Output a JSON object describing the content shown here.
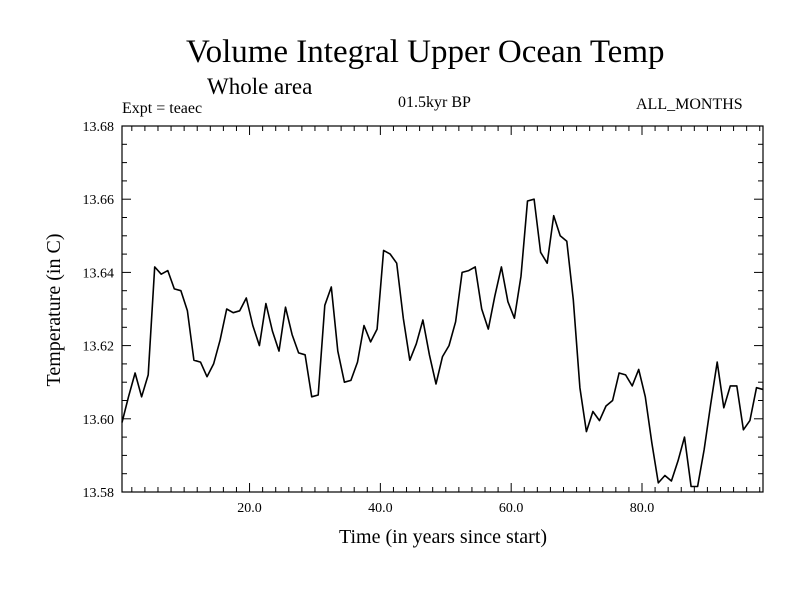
{
  "chart_data": {
    "type": "line",
    "title": "Volume Integral Upper Ocean Temp",
    "subtitle": "Whole area",
    "experiment_label": "Expt = teaec",
    "period_label": "01.5kyr BP",
    "months_label": "ALL_MONTHS",
    "xlabel": "Time (in years since start)",
    "ylabel": "Temperature (in C)",
    "xlim": [
      0.5,
      98.5
    ],
    "ylim": [
      13.58,
      13.68
    ],
    "x_ticks": [
      20,
      40,
      60,
      80
    ],
    "x_tick_labels": [
      "20.0",
      "40.0",
      "60.0",
      "80.0"
    ],
    "y_ticks": [
      13.58,
      13.6,
      13.62,
      13.64,
      13.66,
      13.68
    ],
    "y_tick_labels": [
      "13.58",
      "13.60",
      "13.62",
      "13.64",
      "13.66",
      "13.68"
    ],
    "grid": false,
    "series": [
      {
        "name": "Temperature",
        "x": [
          0.5,
          1.5,
          2.5,
          3.5,
          4.5,
          5.5,
          6.5,
          7.5,
          8.5,
          9.5,
          10.5,
          11.5,
          12.5,
          13.5,
          14.5,
          15.5,
          16.5,
          17.5,
          18.5,
          19.5,
          20.5,
          21.5,
          22.5,
          23.5,
          24.5,
          25.5,
          26.5,
          27.5,
          28.5,
          29.5,
          30.5,
          31.5,
          32.5,
          33.5,
          34.5,
          35.5,
          36.5,
          37.5,
          38.5,
          39.5,
          40.5,
          41.5,
          42.5,
          43.5,
          44.5,
          45.5,
          46.5,
          47.5,
          48.5,
          49.5,
          50.5,
          51.5,
          52.5,
          53.5,
          54.5,
          55.5,
          56.5,
          57.5,
          58.5,
          59.5,
          60.5,
          61.5,
          62.5,
          63.5,
          64.5,
          65.5,
          66.5,
          67.5,
          68.5,
          69.5,
          70.5,
          71.5,
          72.5,
          73.5,
          74.5,
          75.5,
          76.5,
          77.5,
          78.5,
          79.5,
          80.5,
          81.5,
          82.5,
          83.5,
          84.5,
          85.5,
          86.5,
          87.5,
          88.5,
          89.5,
          90.5,
          91.5,
          92.5,
          93.5,
          94.5,
          95.5,
          96.5,
          97.5,
          98.5
        ],
        "values": [
          13.599,
          13.606,
          13.6125,
          13.606,
          13.612,
          13.6415,
          13.6395,
          13.6405,
          13.6355,
          13.635,
          13.6295,
          13.616,
          13.6155,
          13.6115,
          13.615,
          13.6215,
          13.63,
          13.629,
          13.6295,
          13.633,
          13.6255,
          13.62,
          13.6315,
          13.624,
          13.6185,
          13.6305,
          13.623,
          13.618,
          13.6175,
          13.606,
          13.6065,
          13.631,
          13.636,
          13.6185,
          13.61,
          13.6105,
          13.6155,
          13.6255,
          13.621,
          13.6245,
          13.646,
          13.645,
          13.6425,
          13.6275,
          13.616,
          13.6205,
          13.627,
          13.6175,
          13.6095,
          13.617,
          13.62,
          13.6265,
          13.64,
          13.6405,
          13.6415,
          13.63,
          13.6245,
          13.6335,
          13.6415,
          13.632,
          13.6275,
          13.639,
          13.6595,
          13.66,
          13.6455,
          13.6425,
          13.6555,
          13.65,
          13.6485,
          13.6325,
          13.6085,
          13.5965,
          13.602,
          13.5995,
          13.6035,
          13.605,
          13.6125,
          13.612,
          13.609,
          13.6135,
          13.606,
          13.5935,
          13.5825,
          13.5845,
          13.583,
          13.5885,
          13.595,
          13.5815,
          13.5815,
          13.5915,
          13.604,
          13.6155,
          13.603,
          13.609,
          13.609,
          13.597,
          13.5995,
          13.6085,
          13.608
        ]
      }
    ]
  }
}
